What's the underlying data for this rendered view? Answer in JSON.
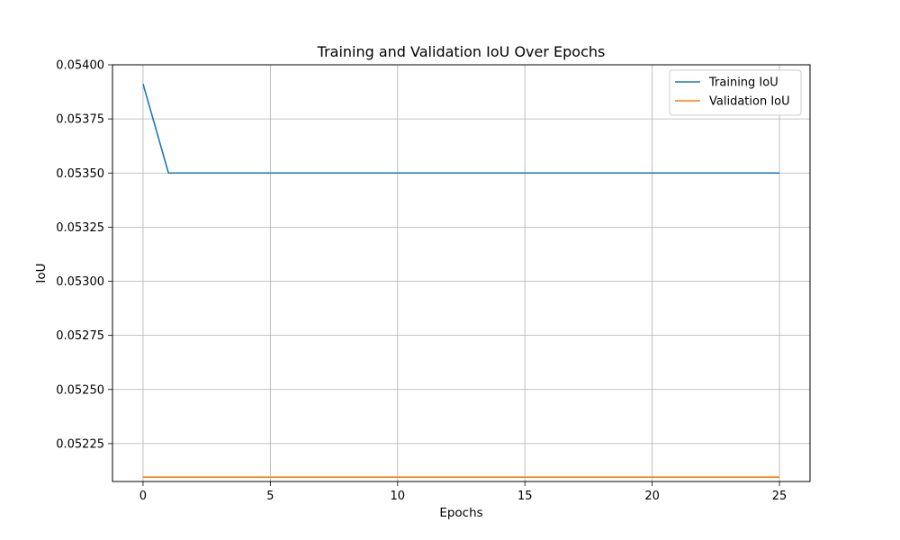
{
  "chart_data": {
    "type": "line",
    "title": "Training and Validation IoU Over Epochs",
    "xlabel": "Epochs",
    "ylabel": "IoU",
    "xlim": [
      -1.2,
      26.2
    ],
    "ylim": [
      0.052075,
      0.054
    ],
    "xticks": [
      0,
      5,
      10,
      15,
      20,
      25
    ],
    "yticks": [
      0.05225,
      0.0525,
      0.05275,
      0.053,
      0.05325,
      0.0535,
      0.05375,
      0.054
    ],
    "ytick_labels": [
      "0.05225",
      "0.05250",
      "0.05275",
      "0.05300",
      "0.05325",
      "0.05350",
      "0.05375",
      "0.05400"
    ],
    "grid": true,
    "legend_position": "top-right",
    "x": [
      0,
      1,
      2,
      3,
      4,
      5,
      6,
      7,
      8,
      9,
      10,
      11,
      12,
      13,
      14,
      15,
      16,
      17,
      18,
      19,
      20,
      21,
      22,
      23,
      24,
      25
    ],
    "series": [
      {
        "name": "Training IoU",
        "color": "#1f77b4",
        "values": [
          0.053912,
          0.0535,
          0.0535,
          0.0535,
          0.0535,
          0.0535,
          0.0535,
          0.0535,
          0.0535,
          0.0535,
          0.0535,
          0.0535,
          0.0535,
          0.0535,
          0.0535,
          0.0535,
          0.0535,
          0.0535,
          0.0535,
          0.0535,
          0.0535,
          0.0535,
          0.0535,
          0.0535,
          0.0535,
          0.0535
        ]
      },
      {
        "name": "Validation IoU",
        "color": "#ff7f0e",
        "values": [
          0.052095,
          0.052095,
          0.052095,
          0.052095,
          0.052095,
          0.052095,
          0.052095,
          0.052095,
          0.052095,
          0.052095,
          0.052095,
          0.052095,
          0.052095,
          0.052095,
          0.052095,
          0.052095,
          0.052095,
          0.052095,
          0.052095,
          0.052095,
          0.052095,
          0.052095,
          0.052095,
          0.052095,
          0.052095,
          0.052095
        ]
      }
    ]
  }
}
